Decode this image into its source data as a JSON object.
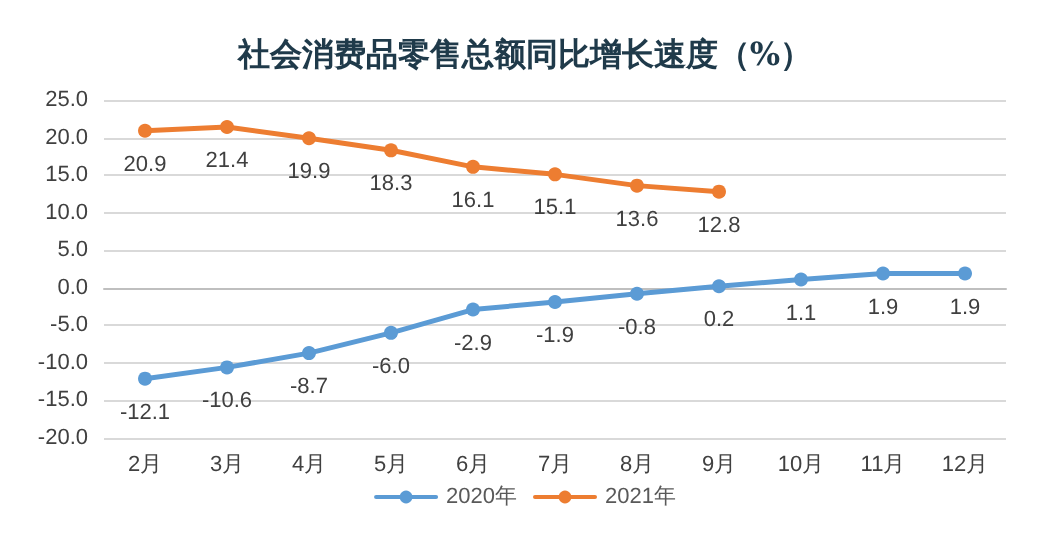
{
  "chart_data": {
    "type": "line",
    "title": "社会消费品零售总额同比增长速度（%）",
    "categories": [
      "2月",
      "3月",
      "4月",
      "5月",
      "6月",
      "7月",
      "8月",
      "9月",
      "10月",
      "11月",
      "12月"
    ],
    "series": [
      {
        "name": "2020年",
        "color": "#5b9bd5",
        "values": [
          -12.1,
          -10.6,
          -8.7,
          -6.0,
          -2.9,
          -1.9,
          -0.8,
          0.2,
          1.1,
          1.9,
          1.9
        ],
        "value_labels": [
          "-12.1",
          "-10.6",
          "-8.7",
          "-6.0",
          "-2.9",
          "-1.9",
          "-0.8",
          "0.2",
          "1.1",
          "1.9",
          "1.9"
        ]
      },
      {
        "name": "2021年",
        "color": "#ed7d31",
        "values": [
          20.9,
          21.4,
          19.9,
          18.3,
          16.1,
          15.1,
          13.6,
          12.8,
          null,
          null,
          null
        ],
        "value_labels": [
          "20.9",
          "21.4",
          "19.9",
          "18.3",
          "16.1",
          "15.1",
          "13.6",
          "12.8",
          null,
          null,
          null
        ]
      }
    ],
    "ylim": [
      -20,
      25
    ],
    "yticks": [
      {
        "value": -20,
        "label": "-20.0"
      },
      {
        "value": -15,
        "label": "-15.0"
      },
      {
        "value": -10,
        "label": "-10.0"
      },
      {
        "value": -5,
        "label": "-5.0"
      },
      {
        "value": 0,
        "label": "0.0"
      },
      {
        "value": 5,
        "label": "5.0"
      },
      {
        "value": 10,
        "label": "10.0"
      },
      {
        "value": 15,
        "label": "15.0"
      },
      {
        "value": 20,
        "label": "20.0"
      },
      {
        "value": 25,
        "label": "25.0"
      }
    ],
    "grid": "y",
    "legend": "bottom",
    "marker": "circle",
    "line_style": "solid"
  }
}
